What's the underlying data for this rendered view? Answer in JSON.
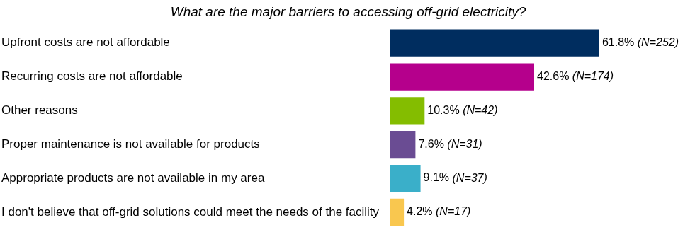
{
  "chart_data": {
    "type": "bar",
    "orientation": "horizontal",
    "title": "What are the major barriers to accessing off-grid electricity?",
    "categories": [
      "Upfront costs are not affordable",
      "Recurring costs are not affordable",
      "Other reasons",
      "Proper maintenance is not available for products",
      "Appropriate products are not available in my area",
      "I don't believe that off-grid solutions could meet the needs of the facility"
    ],
    "values": [
      61.8,
      42.6,
      10.3,
      7.6,
      9.1,
      4.2
    ],
    "value_labels": [
      "61.8% (N=252)",
      "42.6% (N=174)",
      "10.3% (N=42)",
      "7.6% (N=31)",
      "9.1% (N=37)",
      "4.2% (N=17)"
    ],
    "colors": [
      "#002d5f",
      "#b5008c",
      "#84bd00",
      "#6a4c93",
      "#3aafc9",
      "#f9c74f"
    ],
    "xlim": [
      0,
      90
    ],
    "data_labels": true,
    "tick_labels": "y",
    "grid": false
  }
}
